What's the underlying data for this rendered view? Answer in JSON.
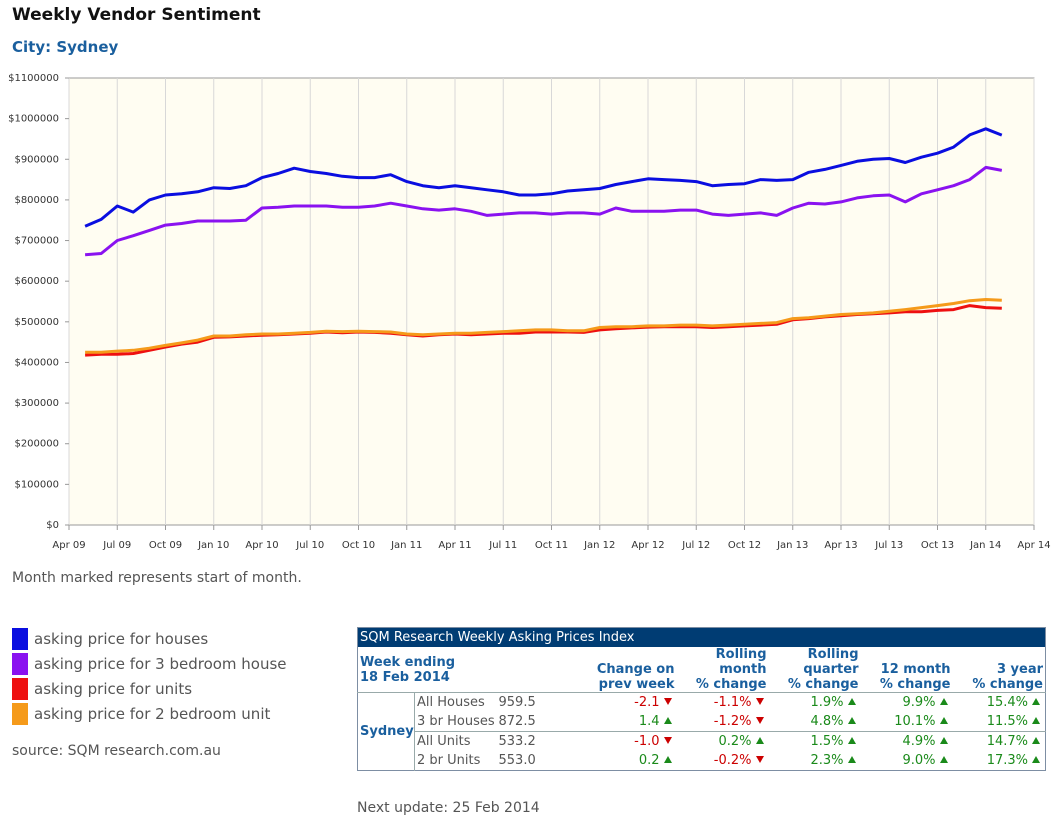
{
  "chart_data": {
    "type": "line",
    "title": "Weekly Vendor Sentiment",
    "subtitle": "City: Sydney",
    "note": "Month marked represents start of month.",
    "source": "source: SQM research.com.au",
    "x": [
      "2009-05",
      "2009-06",
      "2009-07",
      "2009-08",
      "2009-09",
      "2009-10",
      "2009-11",
      "2009-12",
      "2010-01",
      "2010-02",
      "2010-03",
      "2010-04",
      "2010-05",
      "2010-06",
      "2010-07",
      "2010-08",
      "2010-09",
      "2010-10",
      "2010-11",
      "2010-12",
      "2011-01",
      "2011-02",
      "2011-03",
      "2011-04",
      "2011-05",
      "2011-06",
      "2011-07",
      "2011-08",
      "2011-09",
      "2011-10",
      "2011-11",
      "2011-12",
      "2012-01",
      "2012-02",
      "2012-03",
      "2012-04",
      "2012-05",
      "2012-06",
      "2012-07",
      "2012-08",
      "2012-09",
      "2012-10",
      "2012-11",
      "2012-12",
      "2013-01",
      "2013-02",
      "2013-03",
      "2013-04",
      "2013-05",
      "2013-06",
      "2013-07",
      "2013-08",
      "2013-09",
      "2013-10",
      "2013-11",
      "2013-12",
      "2014-01",
      "2014-02"
    ],
    "xlim": [
      "2009-04",
      "2014-04"
    ],
    "xticks": [
      {
        "value": "2009-04",
        "label": "Apr 09"
      },
      {
        "value": "2009-07",
        "label": "Jul 09"
      },
      {
        "value": "2009-10",
        "label": "Oct 09"
      },
      {
        "value": "2010-01",
        "label": "Jan 10"
      },
      {
        "value": "2010-04",
        "label": "Apr 10"
      },
      {
        "value": "2010-07",
        "label": "Jul 10"
      },
      {
        "value": "2010-10",
        "label": "Oct 10"
      },
      {
        "value": "2011-01",
        "label": "Jan 11"
      },
      {
        "value": "2011-04",
        "label": "Apr 11"
      },
      {
        "value": "2011-07",
        "label": "Jul 11"
      },
      {
        "value": "2011-10",
        "label": "Oct 11"
      },
      {
        "value": "2012-01",
        "label": "Jan 12"
      },
      {
        "value": "2012-04",
        "label": "Apr 12"
      },
      {
        "value": "2012-07",
        "label": "Jul 12"
      },
      {
        "value": "2012-10",
        "label": "Oct 12"
      },
      {
        "value": "2013-01",
        "label": "Jan 13"
      },
      {
        "value": "2013-04",
        "label": "Apr 13"
      },
      {
        "value": "2013-07",
        "label": "Jul 13"
      },
      {
        "value": "2013-10",
        "label": "Oct 13"
      },
      {
        "value": "2014-01",
        "label": "Jan 14"
      },
      {
        "value": "2014-04",
        "label": "Apr 14"
      }
    ],
    "ylim": [
      0,
      1100000
    ],
    "yticks": [
      {
        "value": 0,
        "label": "$0"
      },
      {
        "value": 100000,
        "label": "$100000"
      },
      {
        "value": 200000,
        "label": "$200000"
      },
      {
        "value": 300000,
        "label": "$300000"
      },
      {
        "value": 400000,
        "label": "$400000"
      },
      {
        "value": 500000,
        "label": "$500000"
      },
      {
        "value": 600000,
        "label": "$600000"
      },
      {
        "value": 700000,
        "label": "$700000"
      },
      {
        "value": 800000,
        "label": "$800000"
      },
      {
        "value": 900000,
        "label": "$900000"
      },
      {
        "value": 1000000,
        "label": "$1000000"
      },
      {
        "value": 1100000,
        "label": "$1100000"
      }
    ],
    "grid": "x",
    "series": [
      {
        "name": "asking price for houses",
        "color": "#0a0ee0",
        "values": [
          735000,
          752000,
          785000,
          770000,
          800000,
          812000,
          815000,
          820000,
          830000,
          828000,
          835000,
          855000,
          865000,
          878000,
          870000,
          865000,
          858000,
          855000,
          855000,
          862000,
          845000,
          835000,
          830000,
          835000,
          830000,
          825000,
          820000,
          812000,
          812000,
          815000,
          822000,
          825000,
          828000,
          838000,
          845000,
          852000,
          850000,
          848000,
          845000,
          835000,
          838000,
          840000,
          850000,
          848000,
          850000,
          868000,
          875000,
          885000,
          895000,
          900000,
          902000,
          892000,
          905000,
          915000,
          930000,
          960000,
          975000,
          959500
        ]
      },
      {
        "name": "asking price for 3 bedroom house",
        "color": "#8a12f0",
        "values": [
          665000,
          668000,
          700000,
          712000,
          725000,
          738000,
          742000,
          748000,
          748000,
          748000,
          750000,
          780000,
          782000,
          785000,
          785000,
          785000,
          782000,
          782000,
          785000,
          792000,
          785000,
          778000,
          775000,
          778000,
          772000,
          762000,
          765000,
          768000,
          768000,
          765000,
          768000,
          768000,
          765000,
          780000,
          772000,
          772000,
          772000,
          775000,
          775000,
          765000,
          762000,
          765000,
          768000,
          762000,
          780000,
          792000,
          790000,
          795000,
          805000,
          810000,
          812000,
          795000,
          815000,
          825000,
          835000,
          850000,
          880000,
          872500
        ]
      },
      {
        "name": "asking price for units",
        "color": "#ee1010",
        "values": [
          418000,
          420000,
          420000,
          422000,
          430000,
          438000,
          445000,
          450000,
          462000,
          463000,
          465000,
          467000,
          468000,
          470000,
          472000,
          475000,
          473000,
          475000,
          474000,
          472000,
          468000,
          465000,
          468000,
          470000,
          468000,
          470000,
          472000,
          472000,
          475000,
          475000,
          475000,
          474000,
          480000,
          483000,
          485000,
          487000,
          488000,
          488000,
          488000,
          486000,
          488000,
          490000,
          492000,
          494000,
          505000,
          508000,
          512000,
          515000,
          518000,
          520000,
          522000,
          525000,
          525000,
          528000,
          530000,
          540000,
          535000,
          533200
        ]
      },
      {
        "name": "asking price for 2 bedroom unit",
        "color": "#f59a1a",
        "values": [
          425000,
          425000,
          428000,
          430000,
          435000,
          442000,
          448000,
          455000,
          465000,
          465000,
          468000,
          470000,
          470000,
          472000,
          474000,
          477000,
          476000,
          477000,
          476000,
          475000,
          470000,
          468000,
          470000,
          472000,
          472000,
          474000,
          476000,
          478000,
          480000,
          480000,
          478000,
          478000,
          486000,
          488000,
          488000,
          490000,
          490000,
          492000,
          492000,
          490000,
          492000,
          494000,
          496000,
          498000,
          508000,
          510000,
          514000,
          518000,
          520000,
          522000,
          526000,
          530000,
          535000,
          540000,
          545000,
          552000,
          555000,
          553000
        ]
      }
    ]
  },
  "table": {
    "title": "SQM Research Weekly Asking Prices Index",
    "week_label": "Week ending",
    "week_date": "18 Feb 2014",
    "columns": [
      [
        "Change on",
        "prev week"
      ],
      [
        "Rolling",
        "month",
        "% change"
      ],
      [
        "Rolling",
        "quarter",
        "% change"
      ],
      [
        "12 month",
        "% change"
      ],
      [
        "3 year",
        "% change"
      ]
    ],
    "city": "Sydney",
    "rows": [
      [
        "All Houses",
        "959.5",
        "-2.1",
        "-1.1%",
        "1.9%",
        "9.9%",
        "15.4%"
      ],
      [
        "3 br Houses",
        "872.5",
        "1.4",
        "-1.2%",
        "4.8%",
        "10.1%",
        "11.5%"
      ],
      [
        "All Units",
        "533.2",
        "-1.0",
        "0.2%",
        "1.5%",
        "4.9%",
        "14.7%"
      ],
      [
        "2 br Units",
        "553.0",
        "0.2",
        "-0.2%",
        "2.3%",
        "9.0%",
        "17.3%"
      ]
    ]
  },
  "footer": "Next update: 25 Feb 2014"
}
